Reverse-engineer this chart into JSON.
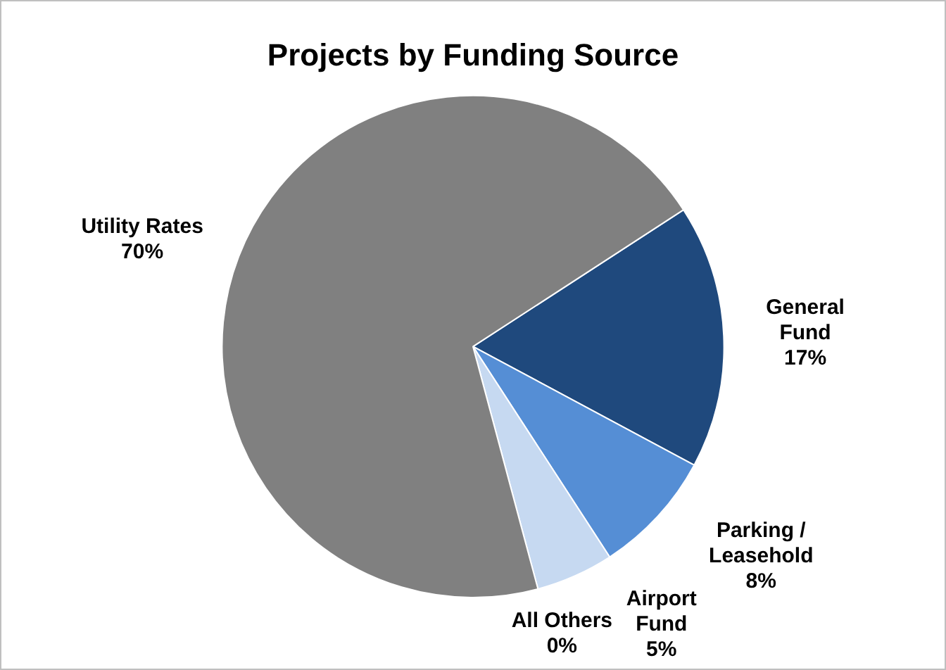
{
  "chart_data": {
    "type": "pie",
    "title": "Projects by Funding Source",
    "categories": [
      "General Fund",
      "Parking / Leasehold",
      "Airport Fund",
      "All Others",
      "Utility Rates"
    ],
    "values": [
      17,
      8,
      5,
      0,
      70
    ],
    "value_labels": [
      "17%",
      "8%",
      "5%",
      "0%",
      "70%"
    ],
    "colors": [
      "#1f497d",
      "#558ed5",
      "#c6d9f1",
      "#8eb4e3",
      "#808080"
    ],
    "legend": false
  }
}
